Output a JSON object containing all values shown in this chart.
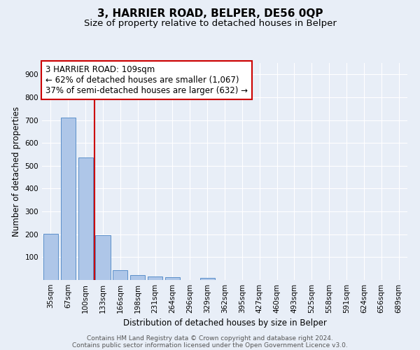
{
  "title": "3, HARRIER ROAD, BELPER, DE56 0QP",
  "subtitle": "Size of property relative to detached houses in Belper",
  "xlabel": "Distribution of detached houses by size in Belper",
  "ylabel": "Number of detached properties",
  "categories": [
    "35sqm",
    "67sqm",
    "100sqm",
    "133sqm",
    "166sqm",
    "198sqm",
    "231sqm",
    "264sqm",
    "296sqm",
    "329sqm",
    "362sqm",
    "395sqm",
    "427sqm",
    "460sqm",
    "493sqm",
    "525sqm",
    "558sqm",
    "591sqm",
    "624sqm",
    "656sqm",
    "689sqm"
  ],
  "values": [
    203,
    712,
    537,
    197,
    43,
    20,
    15,
    12,
    0,
    10,
    0,
    0,
    0,
    0,
    0,
    0,
    0,
    0,
    0,
    0,
    0
  ],
  "bar_color": "#aec6e8",
  "bar_edge_color": "#5b8fc9",
  "vline_index": 2,
  "vline_color": "#cc0000",
  "annotation_text": "3 HARRIER ROAD: 109sqm\n← 62% of detached houses are smaller (1,067)\n37% of semi-detached houses are larger (632) →",
  "annotation_box_color": "#ffffff",
  "annotation_box_edge": "#cc0000",
  "ylim": [
    0,
    950
  ],
  "yticks": [
    0,
    100,
    200,
    300,
    400,
    500,
    600,
    700,
    800,
    900
  ],
  "bg_color": "#e8eef7",
  "plot_bg_color": "#e8eef7",
  "footer_line1": "Contains HM Land Registry data © Crown copyright and database right 2024.",
  "footer_line2": "Contains public sector information licensed under the Open Government Licence v3.0.",
  "title_fontsize": 11,
  "subtitle_fontsize": 9.5,
  "axis_label_fontsize": 8.5,
  "tick_fontsize": 7.5,
  "annotation_fontsize": 8.5,
  "footer_fontsize": 6.5
}
